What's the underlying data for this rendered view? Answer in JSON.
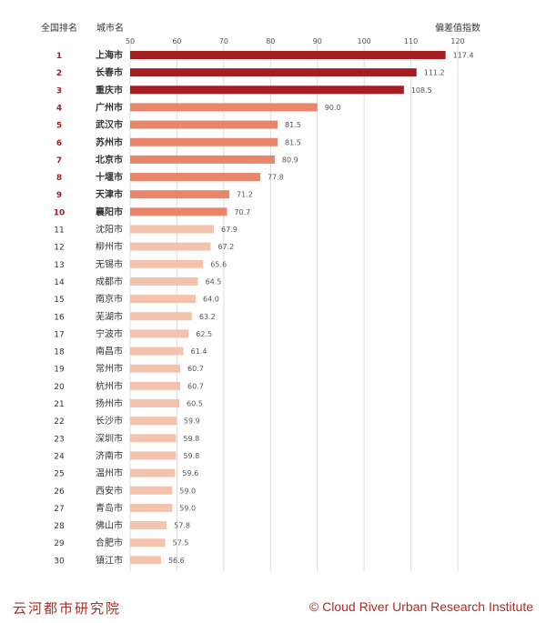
{
  "chart_data": {
    "type": "bar",
    "orientation": "horizontal",
    "rank_header": "全国排名",
    "city_header": "城市名",
    "value_header": "偏差值指数",
    "xlim": [
      50,
      120
    ],
    "xticks": [
      50,
      60,
      70,
      80,
      90,
      100,
      110,
      120
    ],
    "grid": true,
    "ranks": [
      "1",
      "2",
      "3",
      "4",
      "5",
      "6",
      "7",
      "8",
      "9",
      "10",
      "11",
      "12",
      "13",
      "14",
      "15",
      "16",
      "17",
      "18",
      "19",
      "20",
      "21",
      "22",
      "23",
      "24",
      "25",
      "26",
      "27",
      "28",
      "29",
      "30"
    ],
    "categories": [
      "上海市",
      "长春市",
      "重庆市",
      "广州市",
      "武汉市",
      "苏州市",
      "北京市",
      "十堰市",
      "天津市",
      "襄阳市",
      "沈阳市",
      "柳州市",
      "无锡市",
      "成都市",
      "南京市",
      "芜湖市",
      "宁波市",
      "南昌市",
      "常州市",
      "杭州市",
      "扬州市",
      "长沙市",
      "深圳市",
      "济南市",
      "温州市",
      "西安市",
      "青岛市",
      "佛山市",
      "合肥市",
      "镇江市"
    ],
    "values": [
      117.4,
      111.2,
      108.5,
      90.0,
      81.5,
      81.5,
      80.9,
      77.8,
      71.2,
      70.7,
      67.9,
      67.2,
      65.6,
      64.5,
      64.0,
      63.2,
      62.5,
      61.4,
      60.7,
      60.7,
      60.5,
      59.9,
      59.8,
      59.8,
      59.6,
      59.0,
      59.0,
      57.8,
      57.5,
      56.6
    ],
    "value_labels": [
      "117.4",
      "111.2",
      "108.5",
      "90.0",
      "81.5",
      "81.5",
      "80.9",
      "77.8",
      "71.2",
      "70.7",
      "67.9",
      "67.2",
      "65.6",
      "64.5",
      "64.0",
      "63.2",
      "62.5",
      "61.4",
      "60.7",
      "60.7",
      "60.5",
      "59.9",
      "59.8",
      "59.8",
      "59.6",
      "59.0",
      "59.0",
      "57.8",
      "57.5",
      "56.6"
    ],
    "colors": {
      "tier1": "#a51d21",
      "tier2": "#e8866a",
      "tier3": "#f4c3ae",
      "rank_highlight": "#a51d21",
      "text": "#333333",
      "grid": "#dddddd"
    },
    "tiers": [
      1,
      1,
      1,
      2,
      2,
      2,
      2,
      2,
      2,
      2,
      3,
      3,
      3,
      3,
      3,
      3,
      3,
      3,
      3,
      3,
      3,
      3,
      3,
      3,
      3,
      3,
      3,
      3,
      3,
      3
    ]
  },
  "footer": {
    "left": "云河都市研究院",
    "right": "© Cloud River Urban Research Institute"
  }
}
